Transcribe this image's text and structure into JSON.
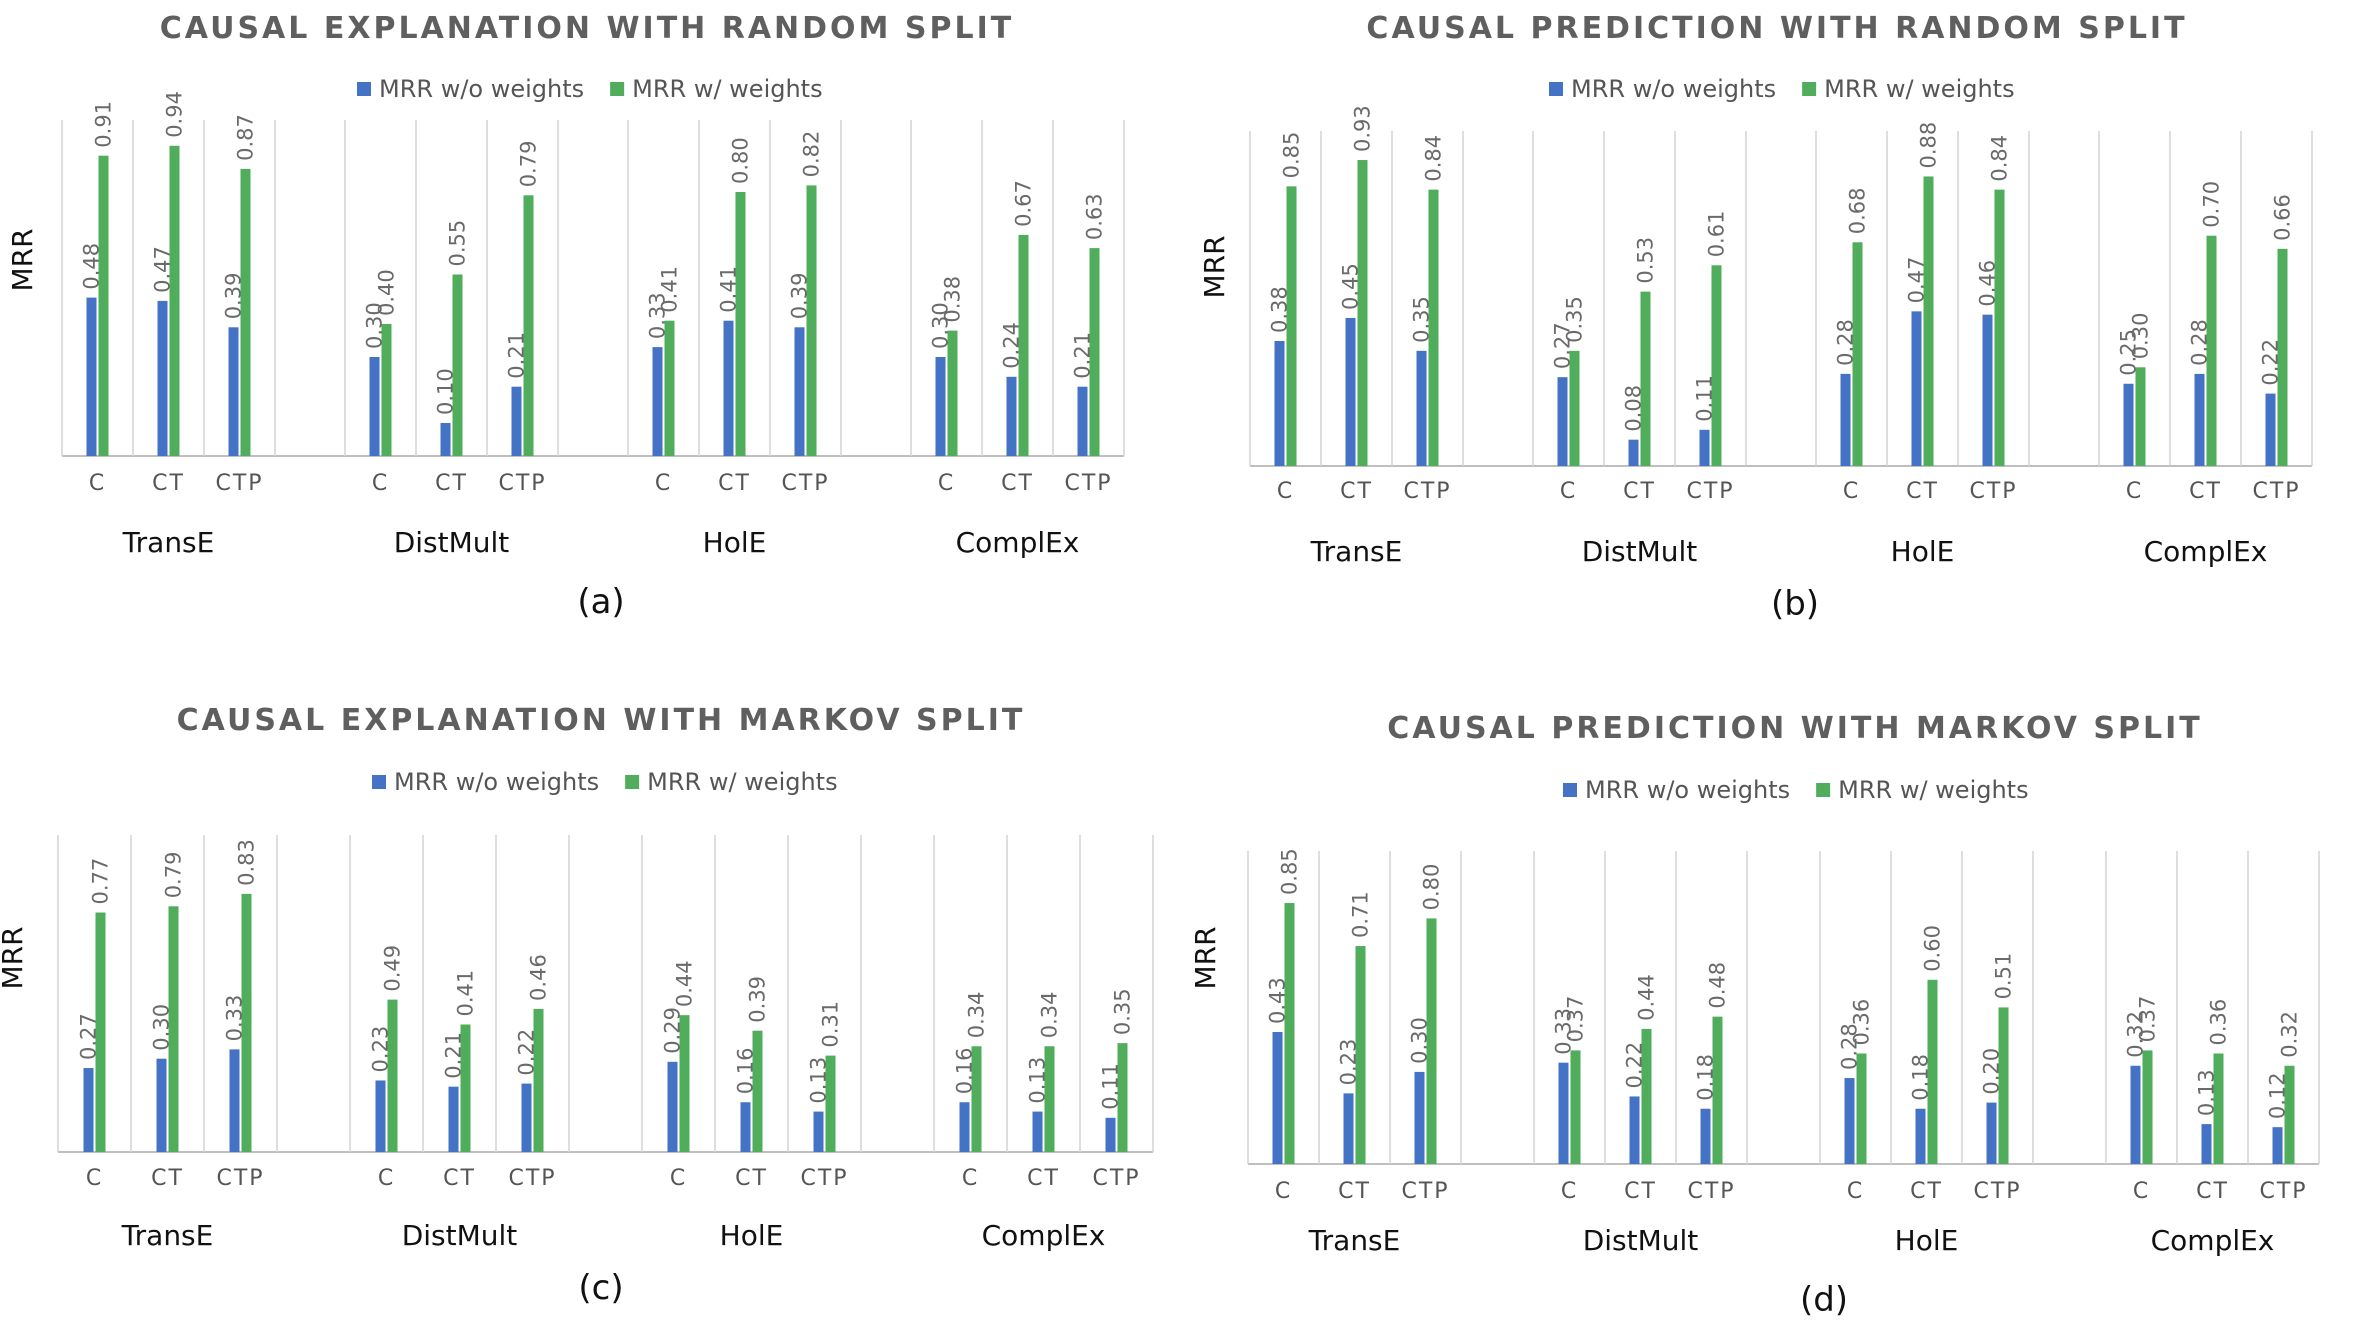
{
  "chart_data": [
    {
      "type": "bar",
      "panel": "(a)",
      "title": "CAUSAL EXPLANATION WITH RANDOM SPLIT",
      "ylabel": "MRR",
      "ylim": [
        0,
        1
      ],
      "legend": [
        "MRR w/o weights",
        "MRR w/ weights"
      ],
      "groups": [
        {
          "name": "TransE",
          "categories": [
            "C",
            "CT",
            "CTP"
          ],
          "without": [
            0.48,
            0.47,
            0.39
          ],
          "with": [
            0.91,
            0.94,
            0.87
          ],
          "without_labels": [
            "0.48",
            "0.47",
            "0.39"
          ],
          "with_labels": [
            "0.91",
            "0.94",
            "0.87"
          ]
        },
        {
          "name": "DistMult",
          "categories": [
            "C",
            "CT",
            "CTP"
          ],
          "without": [
            0.3,
            0.1,
            0.21
          ],
          "with": [
            0.4,
            0.55,
            0.79
          ],
          "without_labels": [
            "0.30",
            "0.10",
            "0.21"
          ],
          "with_labels": [
            "0.40",
            "0.55",
            "0.79"
          ]
        },
        {
          "name": "HolE",
          "categories": [
            "C",
            "CT",
            "CTP"
          ],
          "without": [
            0.33,
            0.41,
            0.39
          ],
          "with": [
            0.41,
            0.8,
            0.82
          ],
          "without_labels": [
            "0.33",
            "0.41",
            "0.39"
          ],
          "with_labels": [
            "0.41",
            "0.80",
            "0.82"
          ]
        },
        {
          "name": "ComplEx",
          "categories": [
            "C",
            "CT",
            "CTP"
          ],
          "without": [
            0.3,
            0.24,
            0.21
          ],
          "with": [
            0.38,
            0.67,
            0.63
          ],
          "without_labels": [
            "0.30",
            "0.24",
            "0.21"
          ],
          "with_labels": [
            "0.38",
            "0.67",
            "0.63"
          ]
        }
      ]
    },
    {
      "type": "bar",
      "panel": "(b)",
      "title": "CAUSAL PREDICTION WITH RANDOM SPLIT",
      "ylabel": "MRR",
      "ylim": [
        0,
        1
      ],
      "legend": [
        "MRR w/o weights",
        "MRR w/ weights"
      ],
      "groups": [
        {
          "name": "TransE",
          "categories": [
            "C",
            "CT",
            "CTP"
          ],
          "without": [
            0.38,
            0.45,
            0.35
          ],
          "with": [
            0.85,
            0.93,
            0.84
          ],
          "without_labels": [
            "0.38",
            "0.45",
            "0.35"
          ],
          "with_labels": [
            "0.85",
            "0.93",
            "0.84"
          ]
        },
        {
          "name": "DistMult",
          "categories": [
            "C",
            "CT",
            "CTP"
          ],
          "without": [
            0.27,
            0.08,
            0.11
          ],
          "with": [
            0.35,
            0.53,
            0.61
          ],
          "without_labels": [
            "0.27",
            "0.08",
            "0.11"
          ],
          "with_labels": [
            "0.35",
            "0.53",
            "0.61"
          ]
        },
        {
          "name": "HolE",
          "categories": [
            "C",
            "CT",
            "CTP"
          ],
          "without": [
            0.28,
            0.47,
            0.46
          ],
          "with": [
            0.68,
            0.88,
            0.84
          ],
          "without_labels": [
            "0.28",
            "0.47",
            "0.46"
          ],
          "with_labels": [
            "0.68",
            "0.88",
            "0.84"
          ]
        },
        {
          "name": "ComplEx",
          "categories": [
            "C",
            "CT",
            "CTP"
          ],
          "without": [
            0.25,
            0.28,
            0.22
          ],
          "with": [
            0.3,
            0.7,
            0.66
          ],
          "without_labels": [
            "0.25",
            "0.28",
            "0.22"
          ],
          "with_labels": [
            "0.30",
            "0.70",
            "0.66"
          ]
        }
      ]
    },
    {
      "type": "bar",
      "panel": "(c)",
      "title": "CAUSAL EXPLANATION WITH MARKOV SPLIT",
      "ylabel": "MRR",
      "ylim": [
        0,
        1
      ],
      "legend": [
        "MRR w/o weights",
        "MRR w/ weights"
      ],
      "groups": [
        {
          "name": "TransE",
          "categories": [
            "C",
            "CT",
            "CTP"
          ],
          "without": [
            0.27,
            0.3,
            0.33
          ],
          "with": [
            0.77,
            0.79,
            0.83
          ],
          "without_labels": [
            "0.27",
            "0.30",
            "0.33"
          ],
          "with_labels": [
            "0.77",
            "0.79",
            "0.83"
          ]
        },
        {
          "name": "DistMult",
          "categories": [
            "C",
            "CT",
            "CTP"
          ],
          "without": [
            0.23,
            0.21,
            0.22
          ],
          "with": [
            0.49,
            0.41,
            0.46
          ],
          "without_labels": [
            "0.23",
            "0.21",
            "0.22"
          ],
          "with_labels": [
            "0.49",
            "0.41",
            "0.46"
          ]
        },
        {
          "name": "HolE",
          "categories": [
            "C",
            "CT",
            "CTP"
          ],
          "without": [
            0.29,
            0.16,
            0.13
          ],
          "with": [
            0.44,
            0.39,
            0.31
          ],
          "without_labels": [
            "0.29",
            "0.16",
            "0.13"
          ],
          "with_labels": [
            "0.44",
            "0.39",
            "0.31"
          ]
        },
        {
          "name": "ComplEx",
          "categories": [
            "C",
            "CT",
            "CTP"
          ],
          "without": [
            0.16,
            0.13,
            0.11
          ],
          "with": [
            0.34,
            0.34,
            0.35
          ],
          "without_labels": [
            "0.16",
            "0.13",
            "0.11"
          ],
          "with_labels": [
            "0.34",
            "0.34",
            "0.35"
          ]
        }
      ]
    },
    {
      "type": "bar",
      "panel": "(d)",
      "title": "CAUSAL PREDICTION WITH MARKOV SPLIT",
      "ylabel": "MRR",
      "ylim": [
        0,
        1
      ],
      "legend": [
        "MRR w/o weights",
        "MRR w/ weights"
      ],
      "groups": [
        {
          "name": "TransE",
          "categories": [
            "C",
            "CT",
            "CTP"
          ],
          "without": [
            0.43,
            0.23,
            0.3
          ],
          "with": [
            0.85,
            0.71,
            0.8
          ],
          "without_labels": [
            "0.43",
            "0.23",
            "0.30"
          ],
          "with_labels": [
            "0.85",
            "0.71",
            "0.80"
          ]
        },
        {
          "name": "DistMult",
          "categories": [
            "C",
            "CT",
            "CTP"
          ],
          "without": [
            0.33,
            0.22,
            0.18
          ],
          "with": [
            0.37,
            0.44,
            0.48
          ],
          "without_labels": [
            "0.33",
            "0.22",
            "0.18"
          ],
          "with_labels": [
            "0.37",
            "0.44",
            "0.48"
          ]
        },
        {
          "name": "HolE",
          "categories": [
            "C",
            "CT",
            "CTP"
          ],
          "without": [
            0.28,
            0.18,
            0.2
          ],
          "with": [
            0.36,
            0.6,
            0.51
          ],
          "without_labels": [
            "0.28",
            "0.18",
            "0.20"
          ],
          "with_labels": [
            "0.36",
            "0.60",
            "0.51"
          ]
        },
        {
          "name": "ComplEx",
          "categories": [
            "C",
            "CT",
            "CTP"
          ],
          "without": [
            0.32,
            0.13,
            0.12
          ],
          "with": [
            0.37,
            0.36,
            0.32
          ],
          "without_labels": [
            "0.32",
            "0.13",
            "0.12"
          ],
          "with_labels": [
            "0.37",
            "0.36",
            "0.32"
          ]
        }
      ]
    }
  ],
  "colors": {
    "without": "#4472c4",
    "with": "#4fad5b"
  }
}
